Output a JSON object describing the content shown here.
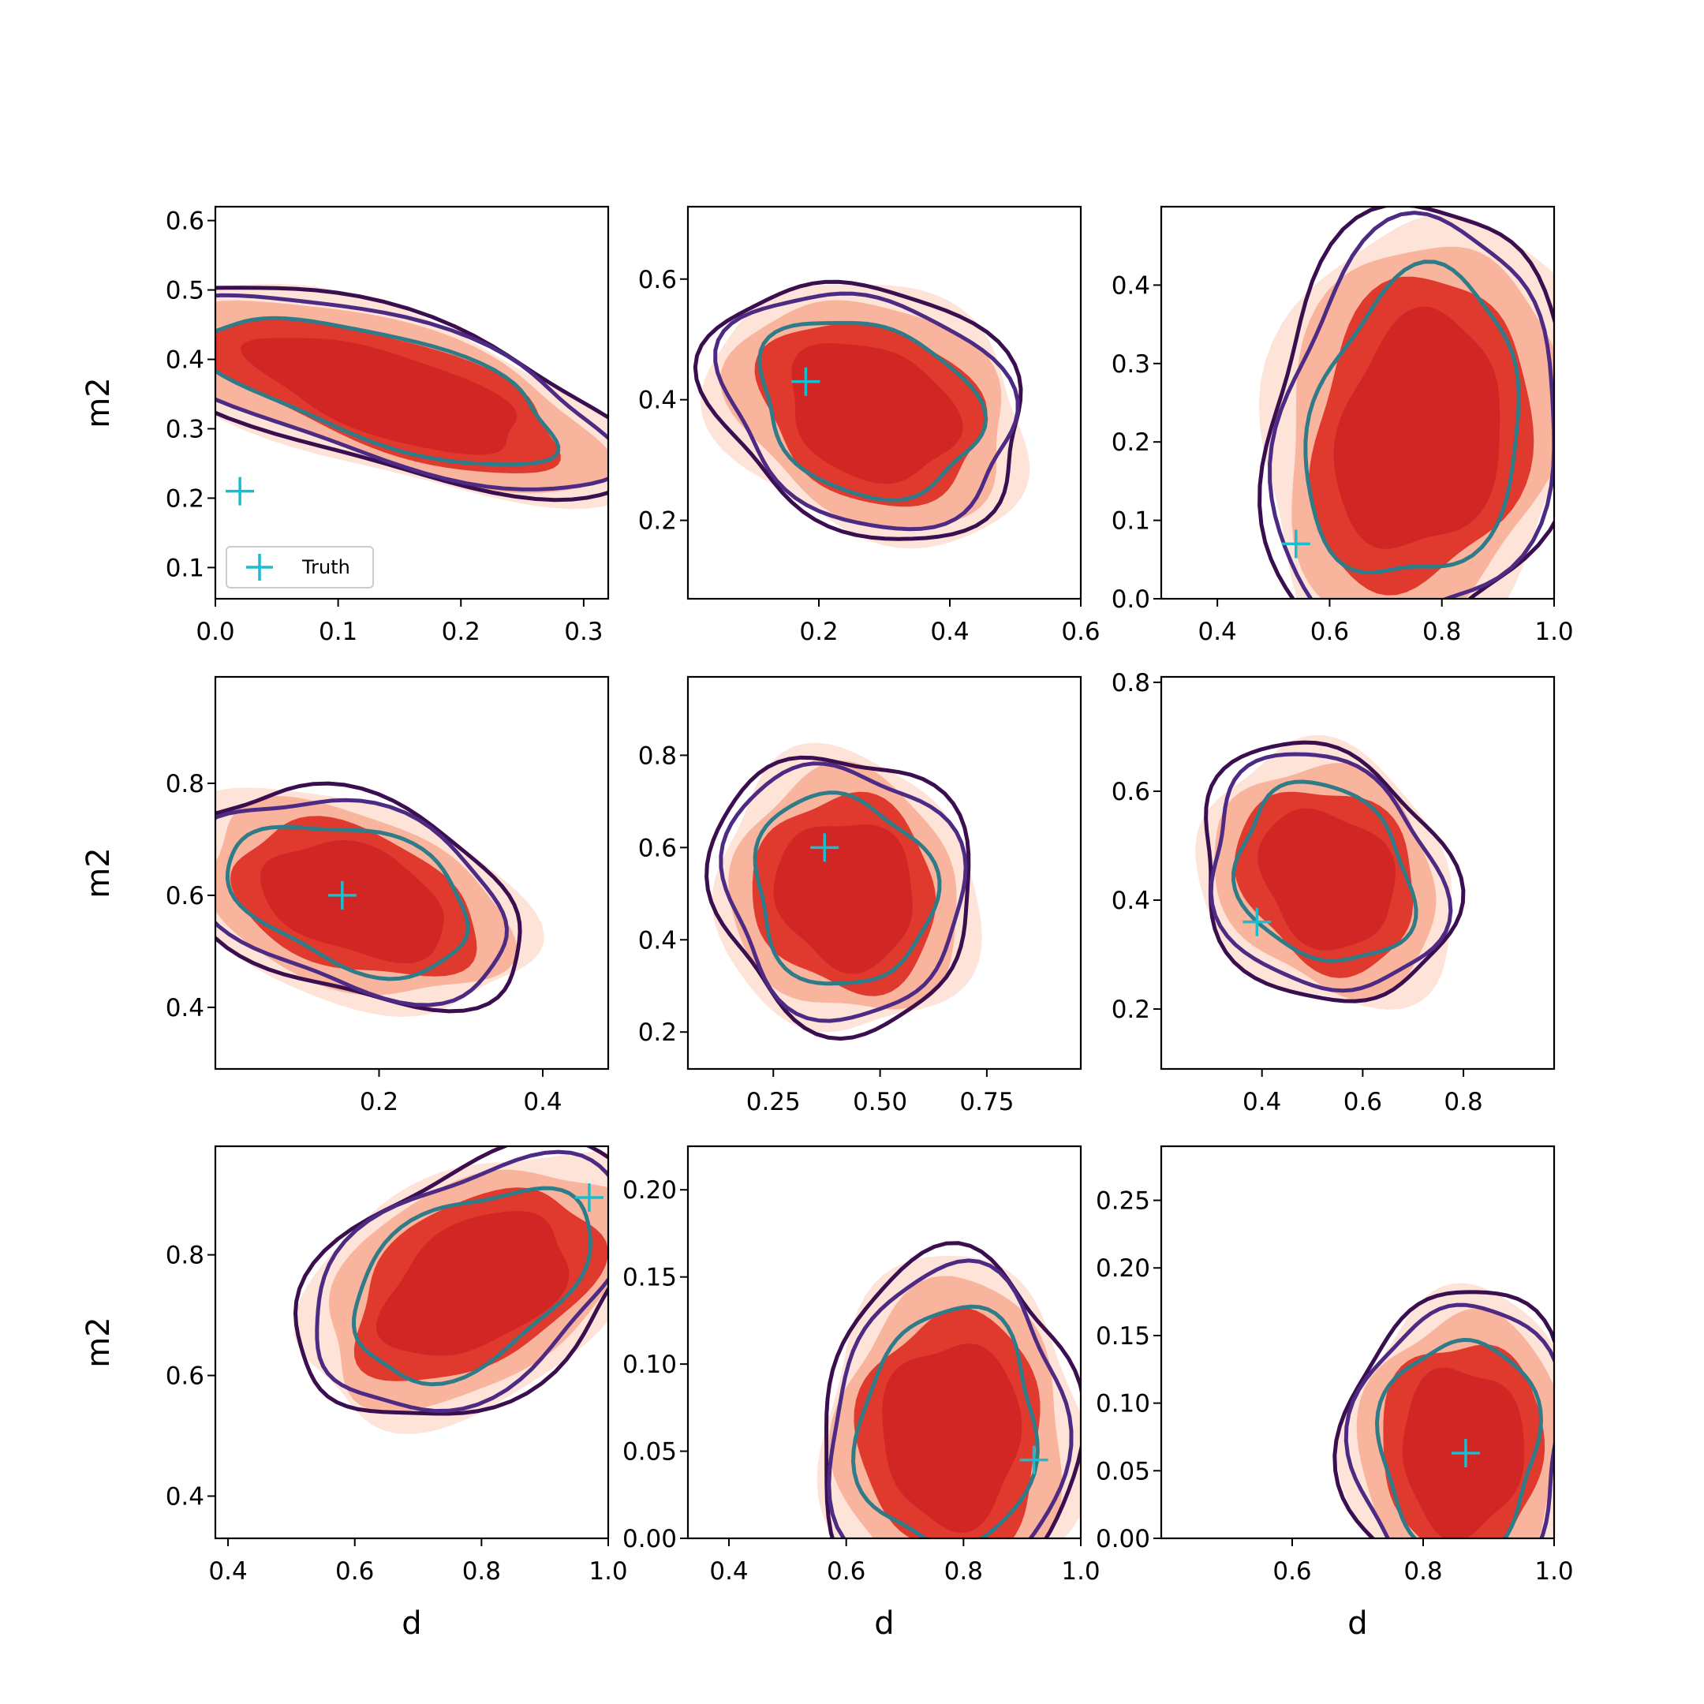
{
  "chart_data": {
    "type": "contour",
    "layout": {
      "rows": 3,
      "cols": 3
    },
    "legend": {
      "label": "Truth",
      "marker": "+",
      "color": "#17becf",
      "placement": "lower-left of first panel"
    },
    "colors": {
      "fill_levels": [
        "#fde3d8",
        "#f9b49d",
        "#e03a2e",
        "#d12623"
      ],
      "line_levels": [
        "#3b0f4f",
        "#4d2a83",
        "#2f7b88"
      ],
      "truth_marker": "#17becf"
    },
    "panels": [
      {
        "xlabel": "",
        "ylabel": "m2",
        "xlim": [
          0.0,
          0.32
        ],
        "ylim": [
          0.055,
          0.62
        ],
        "xticks": [
          0.0,
          0.1,
          0.2,
          0.3
        ],
        "xtick_labels": [
          "0.0",
          "0.1",
          "0.2",
          "0.3"
        ],
        "yticks": [
          0.1,
          0.2,
          0.3,
          0.4,
          0.5,
          0.6
        ],
        "ytick_labels": [
          "0.1",
          "0.2",
          "0.3",
          "0.4",
          "0.5",
          "0.6"
        ],
        "truth": [
          0.02,
          0.21
        ],
        "center": [
          0.14,
          0.35
        ],
        "spread": [
          0.088,
          0.205
        ],
        "angle": 56,
        "show_legend": true
      },
      {
        "xlabel": "",
        "ylabel": "",
        "xlim": [
          0.0,
          0.6
        ],
        "ylim": [
          0.07,
          0.72
        ],
        "xticks": [
          0.2,
          0.4,
          0.6
        ],
        "xtick_labels": [
          "0.2",
          "0.4",
          "0.6"
        ],
        "yticks": [
          0.2,
          0.4,
          0.6
        ],
        "ytick_labels": [
          "0.2",
          "0.4",
          "0.6"
        ],
        "truth": [
          0.18,
          0.43
        ],
        "center": [
          0.28,
          0.38
        ],
        "spread": [
          0.17,
          0.22
        ],
        "angle": 58,
        "show_legend": false
      },
      {
        "xlabel": "",
        "ylabel": "",
        "xlim": [
          0.3,
          1.0
        ],
        "ylim": [
          0.0,
          0.5
        ],
        "xticks": [
          0.4,
          0.6,
          0.8,
          1.0
        ],
        "xtick_labels": [
          "0.4",
          "0.6",
          "0.8",
          "1.0"
        ],
        "yticks": [
          0.0,
          0.1,
          0.2,
          0.3,
          0.4
        ],
        "ytick_labels": [
          "0.0",
          "0.1",
          "0.2",
          "0.3",
          "0.4"
        ],
        "truth": [
          0.54,
          0.07
        ],
        "center": [
          0.76,
          0.21
        ],
        "spread": [
          0.26,
          0.22
        ],
        "angle": 48,
        "show_legend": false
      },
      {
        "xlabel": "",
        "ylabel": "m2",
        "xlim": [
          0.0,
          0.48
        ],
        "ylim": [
          0.29,
          0.99
        ],
        "xticks": [
          0.2,
          0.4
        ],
        "xtick_labels": [
          "0.2",
          "0.4"
        ],
        "yticks": [
          0.4,
          0.6,
          0.8
        ],
        "ytick_labels": [
          "0.4",
          "0.6",
          "0.8"
        ],
        "truth": [
          0.155,
          0.6
        ],
        "center": [
          0.17,
          0.59
        ],
        "spread": [
          0.14,
          0.205
        ],
        "angle": 50,
        "show_legend": false
      },
      {
        "xlabel": "",
        "ylabel": "",
        "xlim": [
          0.05,
          0.97
        ],
        "ylim": [
          0.12,
          0.97
        ],
        "xticks": [
          0.25,
          0.5,
          0.75
        ],
        "xtick_labels": [
          "0.25",
          "0.50",
          "0.75"
        ],
        "yticks": [
          0.2,
          0.4,
          0.6,
          0.8
        ],
        "ytick_labels": [
          "0.2",
          "0.4",
          "0.6",
          "0.8"
        ],
        "truth": [
          0.37,
          0.6
        ],
        "center": [
          0.42,
          0.5
        ],
        "spread": [
          0.25,
          0.27
        ],
        "angle": 50,
        "show_legend": false
      },
      {
        "xlabel": "",
        "ylabel": "",
        "xlim": [
          0.2,
          0.98
        ],
        "ylim": [
          0.09,
          0.81
        ],
        "xticks": [
          0.4,
          0.6,
          0.8
        ],
        "xtick_labels": [
          "0.4",
          "0.6",
          "0.8"
        ],
        "yticks": [
          0.2,
          0.4,
          0.6,
          0.8
        ],
        "ytick_labels": [
          "0.2",
          "0.4",
          "0.6",
          "0.8"
        ],
        "truth": [
          0.39,
          0.36
        ],
        "center": [
          0.53,
          0.44
        ],
        "spread": [
          0.19,
          0.23
        ],
        "angle": 52,
        "show_legend": false
      },
      {
        "xlabel": "d",
        "ylabel": "m2",
        "xlim": [
          0.38,
          1.0
        ],
        "ylim": [
          0.33,
          0.98
        ],
        "xticks": [
          0.4,
          0.6,
          0.8,
          1.0
        ],
        "xtick_labels": [
          "0.4",
          "0.6",
          "0.8",
          "1.0"
        ],
        "yticks": [
          0.4,
          0.6,
          0.8
        ],
        "ytick_labels": [
          "0.4",
          "0.6",
          "0.8"
        ],
        "truth": [
          0.97,
          0.895
        ],
        "center": [
          0.79,
          0.75
        ],
        "spread": [
          0.26,
          0.16
        ],
        "angle": 32,
        "show_legend": false
      },
      {
        "xlabel": "d",
        "ylabel": "",
        "xlim": [
          0.33,
          1.0
        ],
        "ylim": [
          0.0,
          0.225
        ],
        "xticks": [
          0.4,
          0.6,
          0.8,
          1.0
        ],
        "xtick_labels": [
          "0.4",
          "0.6",
          "0.8",
          "1.0"
        ],
        "yticks": [
          0.0,
          0.05,
          0.1,
          0.15,
          0.2
        ],
        "ytick_labels": [
          "0.00",
          "0.05",
          "0.10",
          "0.15",
          "0.20"
        ],
        "truth": [
          0.92,
          0.045
        ],
        "center": [
          0.78,
          0.06
        ],
        "spread": [
          0.19,
          0.085
        ],
        "angle": 0,
        "show_legend": false
      },
      {
        "xlabel": "d",
        "ylabel": "",
        "xlim": [
          0.4,
          1.0
        ],
        "ylim": [
          0.0,
          0.29
        ],
        "xticks": [
          0.6,
          0.8,
          1.0
        ],
        "xtick_labels": [
          "0.6",
          "0.8",
          "1.0"
        ],
        "yticks": [
          0.0,
          0.05,
          0.1,
          0.15,
          0.2,
          0.25
        ],
        "ytick_labels": [
          "0.00",
          "0.05",
          "0.10",
          "0.15",
          "0.20",
          "0.25"
        ],
        "truth": [
          0.865,
          0.063
        ],
        "center": [
          0.86,
          0.065
        ],
        "spread": [
          0.15,
          0.1
        ],
        "angle": 0,
        "show_legend": false
      }
    ]
  }
}
